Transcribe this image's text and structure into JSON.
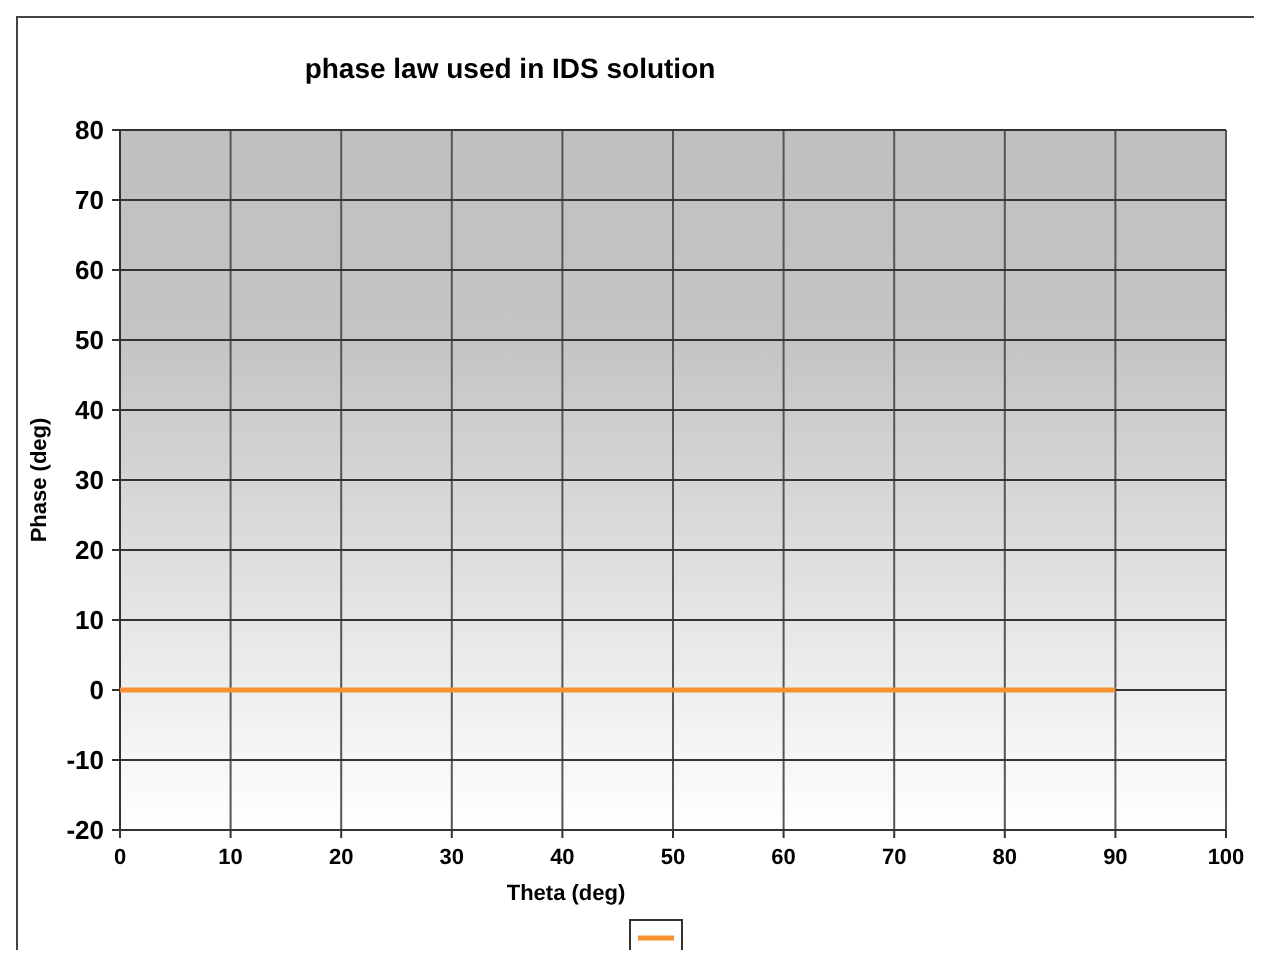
{
  "chart_data": {
    "type": "line",
    "title": "phase law used in IDS solution",
    "xlabel": "Theta (deg)",
    "ylabel": "Phase (deg)",
    "x": [
      0,
      90
    ],
    "series": [
      {
        "color": "#f79232",
        "values": [
          0,
          0
        ]
      }
    ],
    "xlim": [
      0,
      100
    ],
    "xticks": [
      0,
      10,
      20,
      30,
      40,
      50,
      60,
      70,
      80,
      90,
      100
    ],
    "ylim": [
      -20,
      80
    ],
    "yticks": [
      -20,
      -10,
      0,
      10,
      20,
      30,
      40,
      50,
      60,
      70,
      80
    ],
    "grid": true,
    "marker": "none",
    "line_style": "solid"
  }
}
